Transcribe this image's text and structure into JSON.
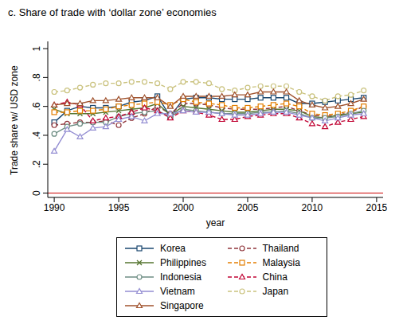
{
  "chart_data": {
    "type": "line",
    "title": "c. Share of trade with ‘dollar zone’ economies",
    "x_label": "year",
    "y_label": "Trade share w/ USD zone",
    "x": [
      1990,
      1991,
      1992,
      1993,
      1994,
      1995,
      1996,
      1997,
      1998,
      1999,
      2000,
      2001,
      2002,
      2003,
      2004,
      2005,
      2006,
      2007,
      2008,
      2009,
      2010,
      2011,
      2012,
      2013,
      2014
    ],
    "xlim": [
      1989.5,
      2015.5
    ],
    "xticks": [
      1990,
      1995,
      2000,
      2005,
      2010,
      2015
    ],
    "ylim": [
      -0.03,
      1.05
    ],
    "yticks": [
      0,
      {
        "value": 0.2,
        "label": ".2"
      },
      {
        "value": 0.4,
        "label": ".4"
      },
      {
        "value": 0.6,
        "label": ".6"
      },
      {
        "value": 0.8,
        "label": ".8"
      },
      1
    ],
    "grid": false,
    "legend": "bottom",
    "reference_line": {
      "y": 0,
      "color": "#cc0000"
    },
    "series": [
      {
        "name": "Korea",
        "color": "#1a476f",
        "marker": "square",
        "line_style": "solid",
        "values": [
          0.49,
          0.57,
          0.6,
          0.59,
          0.59,
          0.6,
          0.63,
          0.64,
          0.67,
          0.53,
          0.65,
          0.66,
          0.66,
          0.65,
          0.65,
          0.65,
          0.66,
          0.66,
          0.66,
          0.62,
          0.62,
          0.63,
          0.64,
          0.65,
          0.66
        ]
      },
      {
        "name": "Thailand",
        "color": "#90353b",
        "marker": "circle",
        "line_style": "dashed",
        "values": [
          0.47,
          0.48,
          0.49,
          0.49,
          0.5,
          0.47,
          0.52,
          0.55,
          0.6,
          0.55,
          0.62,
          0.62,
          0.61,
          0.59,
          0.58,
          0.58,
          0.58,
          0.59,
          0.6,
          0.57,
          0.54,
          0.53,
          0.54,
          0.56,
          0.6
        ]
      },
      {
        "name": "Philippines",
        "color": "#55752f",
        "marker": "x",
        "line_style": "solid",
        "values": [
          0.58,
          0.55,
          0.55,
          0.55,
          0.56,
          0.57,
          0.58,
          0.59,
          0.62,
          0.54,
          0.6,
          0.59,
          0.58,
          0.57,
          0.56,
          0.56,
          0.57,
          0.58,
          0.58,
          0.57,
          0.53,
          0.52,
          0.54,
          0.55,
          0.56
        ]
      },
      {
        "name": "Malaysia",
        "color": "#e37e00",
        "marker": "square",
        "line_style": "dashed",
        "values": [
          0.56,
          0.56,
          0.57,
          0.57,
          0.58,
          0.6,
          0.61,
          0.62,
          0.63,
          0.61,
          0.65,
          0.63,
          0.62,
          0.61,
          0.59,
          0.59,
          0.6,
          0.61,
          0.62,
          0.6,
          0.55,
          0.54,
          0.55,
          0.57,
          0.6
        ]
      },
      {
        "name": "Indonesia",
        "color": "#6e8e84",
        "marker": "circle",
        "line_style": "solid",
        "values": [
          0.41,
          0.46,
          0.48,
          0.49,
          0.49,
          0.53,
          0.55,
          0.56,
          0.57,
          0.53,
          0.58,
          0.57,
          0.56,
          0.55,
          0.55,
          0.55,
          0.56,
          0.56,
          0.57,
          0.55,
          0.52,
          0.52,
          0.53,
          0.55,
          0.57
        ]
      },
      {
        "name": "China",
        "color": "#c10534",
        "marker": "triangle",
        "line_style": "dashed",
        "values": [
          0.61,
          0.63,
          0.61,
          0.5,
          0.52,
          0.53,
          0.56,
          0.59,
          0.57,
          0.52,
          0.57,
          0.56,
          0.54,
          0.51,
          0.51,
          0.53,
          0.54,
          0.55,
          0.55,
          0.52,
          0.48,
          0.46,
          0.49,
          0.51,
          0.53
        ]
      },
      {
        "name": "Vietnam",
        "color": "#938dd2",
        "marker": "triangle",
        "line_style": "solid",
        "values": [
          0.29,
          0.44,
          0.39,
          0.45,
          0.46,
          0.51,
          0.53,
          0.5,
          0.55,
          0.55,
          0.57,
          0.56,
          0.56,
          0.55,
          0.54,
          0.54,
          0.55,
          0.56,
          0.56,
          0.54,
          0.52,
          0.5,
          0.52,
          0.54,
          0.55
        ]
      },
      {
        "name": "Japan",
        "color": "#cac27e",
        "marker": "circle",
        "line_style": "dashed",
        "values": [
          0.7,
          0.71,
          0.73,
          0.75,
          0.76,
          0.76,
          0.77,
          0.77,
          0.76,
          0.72,
          0.77,
          0.77,
          0.76,
          0.72,
          0.71,
          0.73,
          0.74,
          0.74,
          0.74,
          0.7,
          0.67,
          0.64,
          0.67,
          0.68,
          0.71
        ]
      },
      {
        "name": "Singapore",
        "color": "#a0522d",
        "marker": "triangle",
        "line_style": "solid",
        "values": [
          0.61,
          0.62,
          0.62,
          0.64,
          0.64,
          0.65,
          0.66,
          0.66,
          0.66,
          0.6,
          0.67,
          0.67,
          0.67,
          0.67,
          0.68,
          0.68,
          0.7,
          0.7,
          0.7,
          0.64,
          0.61,
          0.59,
          0.6,
          0.62,
          0.65
        ]
      }
    ]
  }
}
